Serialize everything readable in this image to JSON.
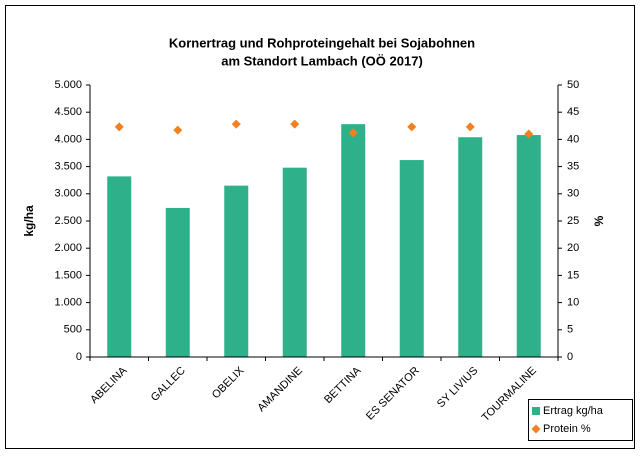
{
  "chart_data": {
    "type": "bar",
    "title": [
      "Kornertrag und Rohproteingehalt bei Sojabohnen",
      "am Standort Lambach (OÖ 2017)"
    ],
    "ylabel": "kg/ha",
    "y2label": "%",
    "categories": [
      "ABELINA",
      "GALLEC",
      "OBELIX",
      "AMANDINE",
      "BETTINA",
      "ES SENATOR",
      "SY LIVIUS",
      "TOURMALINE"
    ],
    "series": [
      {
        "name": "Ertrag kg/ha",
        "color": "#2eb08a",
        "type": "bar",
        "values": [
          3320,
          2740,
          3150,
          3480,
          4280,
          3620,
          4040,
          4080
        ]
      },
      {
        "name": "Protein %",
        "color": "#f28020",
        "type": "scatter",
        "axis": "y2",
        "values": [
          42.3,
          41.7,
          42.8,
          42.8,
          41.2,
          42.3,
          42.3,
          41.0
        ]
      }
    ],
    "ylim": [
      0,
      5000
    ],
    "yticks": [
      0,
      {
        "value": 500,
        "label": "500"
      },
      {
        "value": 1000,
        "label": "1.000"
      },
      {
        "value": 1500,
        "label": "1.500"
      },
      {
        "value": 2000,
        "label": "2.000"
      },
      {
        "value": 2500,
        "label": "2.500"
      },
      {
        "value": 3000,
        "label": "3.000"
      },
      {
        "value": 3500,
        "label": "3.500"
      },
      {
        "value": 4000,
        "label": "4.000"
      },
      {
        "value": 4500,
        "label": "4.500"
      },
      {
        "value": 5000,
        "label": "5.000"
      }
    ],
    "y2lim": [
      0,
      50
    ],
    "y2ticks": [
      0,
      5,
      10,
      15,
      20,
      25,
      30,
      35,
      40,
      45,
      50
    ],
    "grid": false,
    "legend": "bottom-right"
  }
}
